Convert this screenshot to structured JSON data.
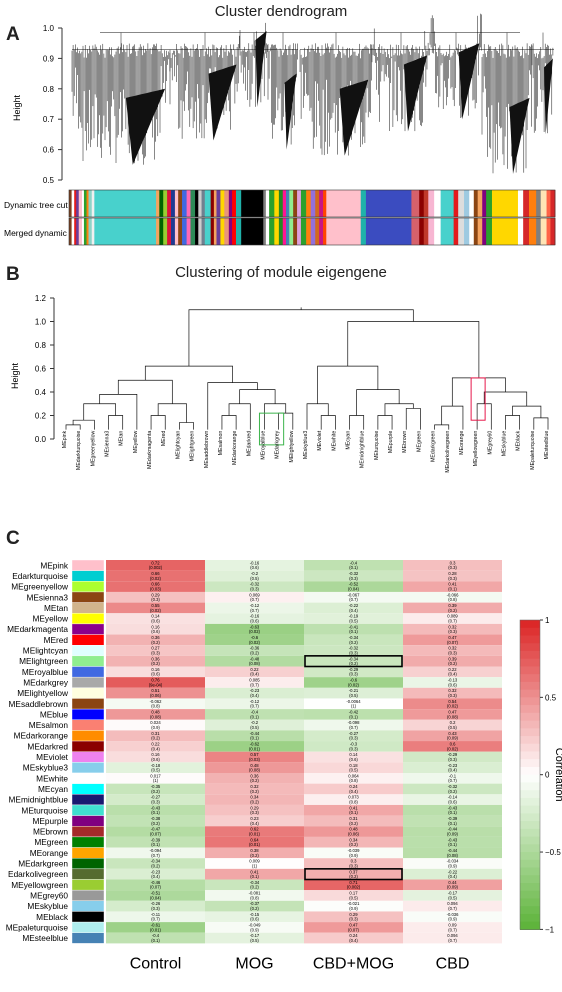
{
  "panel_a": {
    "letter": "A",
    "title": "Cluster dendrogram",
    "ylabel": "Height",
    "yticks": [
      "0.5",
      "0.6",
      "0.7",
      "0.8",
      "0.9",
      "1.0"
    ],
    "row_labels": [
      "Dynamic tree cut",
      "Merged dynamic"
    ],
    "color_blocks": [
      [
        "#7a3f1e",
        0.4
      ],
      [
        "#ffffff",
        0.4
      ],
      [
        "#e41a1c",
        0.3
      ],
      [
        "#6a3d9a",
        0.4
      ],
      [
        "#ffc0cb",
        0.5
      ],
      [
        "#ffffff",
        0.3
      ],
      [
        "#2ca02c",
        0.4
      ],
      [
        "#ff7f0e",
        0.3
      ],
      [
        "#8dd3c7",
        0.5
      ],
      [
        "#f0f0f0",
        0.4
      ],
      [
        "#48d1cc",
        9.5
      ],
      [
        "#f4a460",
        0.5
      ],
      [
        "#006400",
        0.6
      ],
      [
        "#9acd32",
        0.6
      ],
      [
        "#dc143c",
        0.6
      ],
      [
        "#1f3a93",
        0.6
      ],
      [
        "#ffc0cb",
        0.5
      ],
      [
        "#8b4513",
        0.6
      ],
      [
        "#4169e1",
        0.7
      ],
      [
        "#ff69b4",
        0.6
      ],
      [
        "#2e8b57",
        0.7
      ],
      [
        "#000000",
        0.5
      ],
      [
        "#cccccc",
        0.5
      ],
      [
        "#708090",
        0.5
      ],
      [
        "#48d1cc",
        0.9
      ],
      [
        "#8b0000",
        0.5
      ],
      [
        "#f4a460",
        0.4
      ],
      [
        "#6a3d9a",
        0.6
      ],
      [
        "#ffd700",
        0.6
      ],
      [
        "#e9967a",
        0.7
      ],
      [
        "#800080",
        0.5
      ],
      [
        "#ff0000",
        0.6
      ],
      [
        "#20b2aa",
        0.8
      ],
      [
        "#000000",
        3.4
      ],
      [
        "#7f7f7f",
        0.4
      ],
      [
        "#ffffff",
        0.5
      ],
      [
        "#2ca02c",
        0.8
      ],
      [
        "#ffd700",
        0.7
      ],
      [
        "#228b22",
        0.6
      ],
      [
        "#ff1493",
        0.5
      ],
      [
        "#4682b4",
        0.5
      ],
      [
        "#90ee90",
        0.6
      ],
      [
        "#8b4513",
        0.6
      ],
      [
        "#dda0dd",
        0.6
      ],
      [
        "#2ca02c",
        0.8
      ],
      [
        "#ff7f0e",
        0.7
      ],
      [
        "#9370db",
        0.7
      ],
      [
        "#d2691e",
        0.6
      ],
      [
        "#c71585",
        0.6
      ],
      [
        "#ff4500",
        0.5
      ],
      [
        "#ffc0cb",
        5.3
      ],
      [
        "#20b2aa",
        0.8
      ],
      [
        "#3b4cc0",
        7.0
      ],
      [
        "#d6616b",
        1.2
      ],
      [
        "#8b0000",
        0.7
      ],
      [
        "#c0392b",
        0.7
      ],
      [
        "#f7b6d2",
        0.9
      ],
      [
        "#ffffff",
        1.0
      ],
      [
        "#48d1cc",
        2.0
      ],
      [
        "#e41a1c",
        0.7
      ],
      [
        "#dddddd",
        0.9
      ],
      [
        "#9ecae1",
        0.8
      ],
      [
        "#ffffff",
        0.7
      ],
      [
        "#8b4513",
        0.6
      ],
      [
        "#f4a460",
        0.7
      ],
      [
        "#800080",
        0.6
      ],
      [
        "#2ca02c",
        0.9
      ],
      [
        "#ffd700",
        4.0
      ],
      [
        "#ffffff",
        0.8
      ],
      [
        "#d62728",
        0.9
      ],
      [
        "#ff7f0e",
        1.1
      ],
      [
        "#7f7f7f",
        0.7
      ],
      [
        "#ffe4b5",
        0.9
      ],
      [
        "#ff6347",
        0.6
      ],
      [
        "#d62728",
        0.7
      ]
    ]
  },
  "panel_b": {
    "letter": "B",
    "title": "Clustering of module eigengene",
    "ylabel": "Height",
    "yticks": [
      "0.0",
      "0.2",
      "0.4",
      "0.6",
      "0.8",
      "1.0",
      "1.2"
    ],
    "leaves": [
      "MEpink",
      "MEdarkturquoise",
      "MEgreenyellow",
      "MEsienna3",
      "MEtan",
      "MEyellow",
      "MEdarkmagenta",
      "MEred",
      "MElightcyan",
      "MElightgreen",
      "MEsaddlebrown",
      "MEsalmon",
      "MEdarkorange",
      "MEdarkred",
      "MEroyalblue",
      "MEdarkgrey",
      "MElightyellow",
      "MEskyblue3",
      "MEviolet",
      "MEwhite",
      "MEcyan",
      "MEmidnightblue",
      "MEturquoise",
      "MEpurple",
      "MEbrown",
      "MEgreen",
      "MEdarkgreen",
      "MEdarkolivegreen",
      "MEorange",
      "MEyellowgreen",
      "MEgrey60",
      "MEskyblue",
      "MEblack",
      "MEpaleturquoise",
      "MEsteelblue"
    ]
  },
  "panel_c": {
    "letter": "C",
    "legend_title": "Correlation",
    "legend_ticks": [
      "1",
      "0.5",
      "0",
      "−0.5",
      "−1"
    ],
    "columns": [
      "Control",
      "MOG",
      "CBD+MOG",
      "CBD"
    ],
    "highlight": [
      [
        9,
        2
      ],
      [
        29,
        2
      ]
    ]
  },
  "chart_data": {
    "type": "heatmap",
    "title": "",
    "rows": [
      "MEpink",
      "Edarkturquoise",
      "MEgreenyellow",
      "MEsienna3",
      "MEtan",
      "MEyellow",
      "MEdarkmagenta",
      "MEred",
      "MElightcyan",
      "MElightgreen",
      "MEroyalblue",
      "MEdarkgrey",
      "MElightyellow",
      "MEsaddlebrown",
      "MEblue",
      "MEsalmon",
      "MEdarkorange",
      "MEdarkred",
      "MEviolet",
      "MEskyblue3",
      "MEwhite",
      "MEcyan",
      "MEmidnightblue",
      "MEturquoise",
      "MEpurple",
      "MEbrown",
      "MEgreen",
      "MEorange",
      "MEdarkgreen",
      "Edarkolivegreen",
      "MEyellowgreen",
      "MEgrey60",
      "MEskyblue",
      "MEblack",
      "MEpaleturquoise",
      "MEsteelblue"
    ],
    "row_swatches": [
      "#ffc0cb",
      "#00ced1",
      "#adff2f",
      "#8b4513",
      "#d2b48c",
      "#ffff00",
      "#8b008b",
      "#ff0000",
      "#e0ffff",
      "#90ee90",
      "#4169e1",
      "#a9a9a9",
      "#ffffe0",
      "#8b4513",
      "#0000ff",
      "#fa8072",
      "#ff8c00",
      "#8b0000",
      "#ee82ee",
      "#87ceeb",
      "#ffffff",
      "#00ffff",
      "#191970",
      "#40e0d0",
      "#800080",
      "#a52a2a",
      "#008000",
      "#ffa500",
      "#006400",
      "#556b2f",
      "#9acd32",
      "#999999",
      "#87ceeb",
      "#000000",
      "#afeeee",
      "#4682b4"
    ],
    "columns": [
      "Control",
      "MOG",
      "CBD+MOG",
      "CBD"
    ],
    "values": [
      [
        0.72,
        -0.16,
        -0.4,
        0.3
      ],
      [
        0.66,
        -0.2,
        -0.32,
        0.28
      ],
      [
        0.66,
        -0.32,
        -0.52,
        0.41
      ],
      [
        0.29,
        0.069,
        -0.067,
        -0.066
      ],
      [
        0.55,
        -0.12,
        -0.22,
        0.39
      ],
      [
        0.14,
        -0.16,
        -0.19,
        0.089
      ],
      [
        0.16,
        -0.63,
        -0.41,
        0.32
      ],
      [
        0.36,
        -0.6,
        -0.34,
        0.47
      ],
      [
        0.27,
        -0.36,
        -0.32,
        0.32
      ],
      [
        0.36,
        -0.48,
        -0.34,
        0.39
      ],
      [
        0.16,
        0.22,
        -0.29,
        0.22
      ],
      [
        0.76,
        0.085,
        -0.6,
        -0.13
      ],
      [
        0.51,
        -0.23,
        -0.21,
        0.32
      ],
      [
        -0.062,
        -0.12,
        -0.0064,
        0.54
      ],
      [
        0.48,
        -0.4,
        -0.42,
        0.47
      ],
      [
        0.024,
        -0.2,
        -0.098,
        0.2
      ],
      [
        0.31,
        -0.44,
        -0.27,
        0.43
      ],
      [
        0.22,
        -0.62,
        -0.3,
        0.6
      ],
      [
        0.16,
        0.57,
        0.14,
        -0.29
      ],
      [
        -0.18,
        0.48,
        0.18,
        -0.23
      ],
      [
        0.017,
        0.36,
        0.064,
        -0.1
      ],
      [
        -0.35,
        0.32,
        0.24,
        -0.32
      ],
      [
        -0.27,
        0.34,
        0.073,
        -0.14
      ],
      [
        -0.43,
        0.29,
        0.41,
        -0.43
      ],
      [
        -0.38,
        0.23,
        0.31,
        -0.39
      ],
      [
        -0.47,
        0.62,
        0.48,
        -0.44
      ],
      [
        -0.39,
        0.64,
        0.34,
        -0.43
      ],
      [
        -0.094,
        0.38,
        -0.039,
        -0.44
      ],
      [
        -0.34,
        0.009,
        0.3,
        -0.034
      ],
      [
        -0.23,
        0.41,
        0.37,
        -0.22
      ],
      [
        -0.46,
        -0.34,
        0.71,
        0.44
      ],
      [
        -0.51,
        -0.081,
        0.17,
        -0.17
      ],
      [
        -0.26,
        -0.37,
        -0.021,
        0.094
      ],
      [
        -0.11,
        -0.15,
        0.29,
        -0.036
      ],
      [
        -0.61,
        -0.049,
        0.47,
        0.09
      ],
      [
        -0.4,
        -0.17,
        0.24,
        0.094
      ]
    ],
    "pvalues": [
      [
        "(0.002)",
        "(0.6)",
        "(0.1)",
        "(0.3)"
      ],
      [
        "(0.02)",
        "(0.5)",
        "(0.3)",
        "(0.3)"
      ],
      [
        "(0.03)",
        "(0.3)",
        "(0.04)",
        "(0.1)"
      ],
      [
        "(0.3)",
        "(0.7)",
        "(0.7)",
        "(0.8)"
      ],
      [
        "(0.02)",
        "(0.7)",
        "(0.4)",
        "(0.2)"
      ],
      [
        "(0.6)",
        "(0.6)",
        "(0.5)",
        "(0.7)"
      ],
      [
        "(0.6)",
        "(0.02)",
        "(0.1)",
        "(0.3)"
      ],
      [
        "(0.2)",
        "(0.02)",
        "(0.2)",
        "(0.07)"
      ],
      [
        "(0.3)",
        "(0.2)",
        "(0.3)",
        "(0.3)"
      ],
      [
        "(0.2)",
        "(0.08)",
        "(0.2)",
        "(0.2)"
      ],
      [
        "(0.6)",
        "(0.4)",
        "(0.3)",
        "(0.4)"
      ],
      [
        "(9e-04)",
        "(0.7)",
        "(0.02)",
        "(0.6)"
      ],
      [
        "(0.06)",
        "(0.4)",
        "(0.5)",
        "(0.3)"
      ],
      [
        "(0.8)",
        "(0.7)",
        "(1)",
        "(0.02)"
      ],
      [
        "(0.08)",
        "(0.1)",
        "(0.1)",
        "(0.08)"
      ],
      [
        "(0.9)",
        "(0.5)",
        "(0.7)",
        "(0.5)"
      ],
      [
        "(0.2)",
        "(0.1)",
        "(0.3)",
        "(0.09)"
      ],
      [
        "(0.4)",
        "(0.01)",
        "(0.3)",
        "(0.02)"
      ],
      [
        "(0.6)",
        "(0.03)",
        "(0.6)",
        "(0.3)"
      ],
      [
        "(0.5)",
        "(0.08)",
        "(0.5)",
        "(0.4)"
      ],
      [
        "(1)",
        "(0.2)",
        "(0.8)",
        "(0.7)"
      ],
      [
        "(0.2)",
        "(0.2)",
        "(0.4)",
        "(0.2)"
      ],
      [
        "(0.3)",
        "(0.2)",
        "(0.8)",
        "(0.6)"
      ],
      [
        "(0.1)",
        "(0.3)",
        "(0.1)",
        "(0.1)"
      ],
      [
        "(0.2)",
        "(0.4)",
        "(0.2)",
        "(0.1)"
      ],
      [
        "(0.07)",
        "(0.01)",
        "(0.06)",
        "(0.09)"
      ],
      [
        "(0.1)",
        "(0.01)",
        "(0.2)",
        "(0.1)"
      ],
      [
        "(0.7)",
        "(0.2)",
        "(0.9)",
        "(0.08)"
      ],
      [
        "(0.2)",
        "(1)",
        "(0.3)",
        "(0.9)"
      ],
      [
        "(0.4)",
        "(0.1)",
        "(0.2)",
        "(0.4)"
      ],
      [
        "(0.07)",
        "(0.2)",
        "(0.002)",
        "(0.09)"
      ],
      [
        "(0.04)",
        "(0.8)",
        "(0.5)",
        "(0.5)"
      ],
      [
        "(0.3)",
        "(0.2)",
        "(0.9)",
        "(0.7)"
      ],
      [
        "(0.7)",
        "(0.6)",
        "(0.3)",
        "(0.9)"
      ],
      [
        "(0.01)",
        "(0.9)",
        "(0.07)",
        "(0.7)"
      ],
      [
        "(0.1)",
        "(0.5)",
        "(0.4)",
        "(0.7)"
      ]
    ],
    "scale": [
      -1,
      1
    ]
  }
}
